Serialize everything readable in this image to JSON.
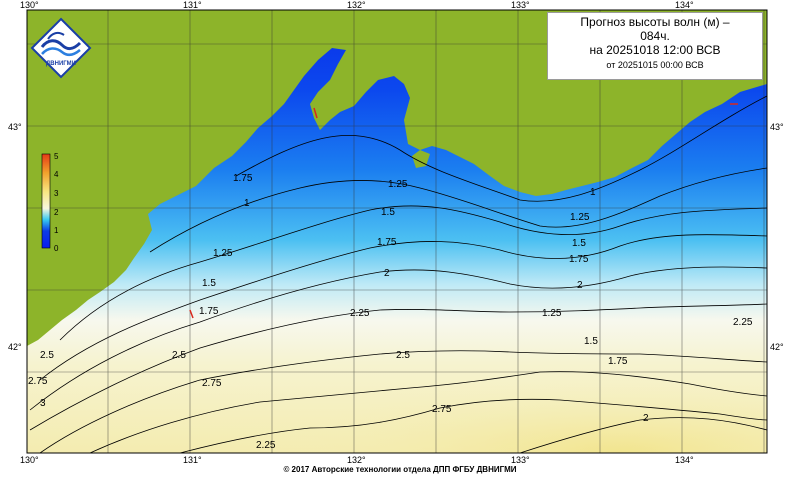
{
  "title": {
    "line1": "Прогноз высоты волн (м) –",
    "line2": "084ч.",
    "line3": "на 20251018 12:00 ВСВ",
    "line4": "от 20251015 00:00 ВСВ"
  },
  "logo": {
    "text": "ДВНИГМИ",
    "icon": "wave-logo-icon"
  },
  "copyright": "© 2017 Авторские технологии отдела ДПП ФГБУ ДВНИГМИ",
  "axes": {
    "lon_ticks": [
      "130°",
      "131°",
      "132°",
      "133°",
      "134°"
    ],
    "lat_ticks": [
      "43°",
      "42°"
    ]
  },
  "colorbar": {
    "labels": [
      "5",
      "4",
      "3",
      "2",
      "1",
      "0"
    ],
    "colors": [
      "#e53a16",
      "#f2a12c",
      "#f7e680",
      "#f7f7df",
      "#36c8f0",
      "#0c3ce6",
      "#0a1cf0"
    ]
  },
  "contour_labels": [
    "1.75",
    "1",
    "1.25",
    "1.5",
    "1.75",
    "1.25",
    "1.5",
    "1.75",
    "2",
    "2.25",
    "2.5",
    "2.75",
    "1.25",
    "1.5",
    "1.75",
    "2",
    "1",
    "1.25",
    "1.5",
    "1.75",
    "2",
    "2.25",
    "2.5",
    "2.75",
    "2.25",
    "2.5",
    "2.75",
    "3",
    "2.25",
    "2"
  ],
  "colors": {
    "land": "#8db42a",
    "sea_deep": "#0a2ee8",
    "sea_mid": "#1e8ef2",
    "sea_light": "#6fd3f4",
    "foam": "#f5f8ef",
    "sand": "#f5f2c8",
    "sand_warm": "#f2ea9c",
    "marker": "#d9281c"
  }
}
